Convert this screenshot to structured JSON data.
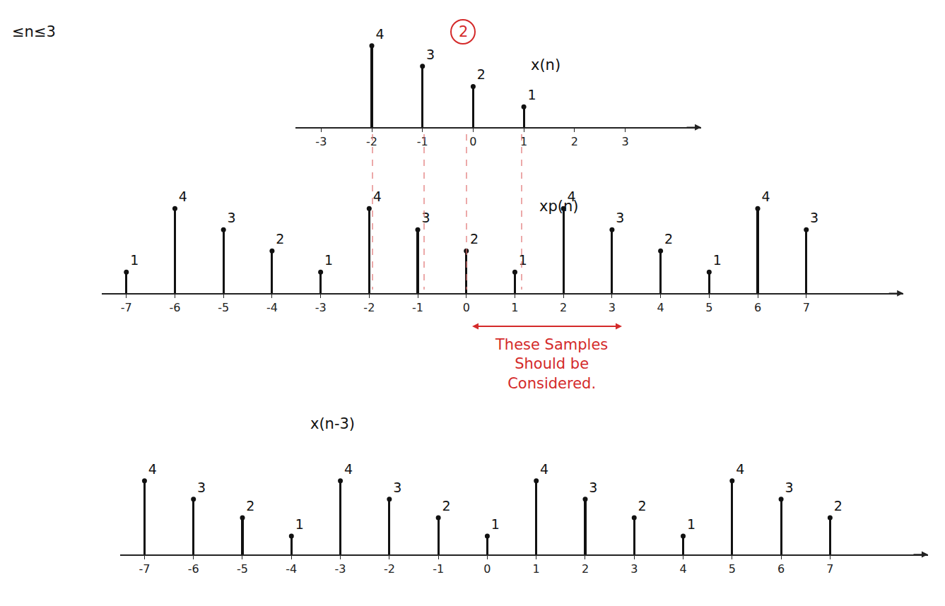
{
  "chart_data": [
    {
      "type": "stem",
      "annotations": [
        {
          "text": "2",
          "color": "#d42a2a"
        },
        {
          "text": "x(n)"
        },
        {
          "text": "≤n≤3"
        }
      ],
      "x": [
        -2,
        -1,
        0,
        1
      ],
      "values": [
        4,
        3,
        2,
        1
      ],
      "xlim": [
        -3.5,
        4.5
      ],
      "xticks": [
        -3,
        -2,
        -1,
        0,
        1,
        2,
        3
      ],
      "ylim": [
        0,
        5
      ],
      "tick_labels": "x",
      "data_labels": true,
      "color": "#111111"
    },
    {
      "type": "stem",
      "annotations": [
        {
          "text": "xp(n)"
        },
        {
          "text": "These Samples Should be Considered.",
          "color": "#d42a2a"
        }
      ],
      "x": [
        -7,
        -6,
        -5,
        -4,
        -3,
        -2,
        -1,
        0,
        1,
        2,
        3,
        4,
        5,
        6,
        7
      ],
      "values": [
        1,
        4,
        3,
        2,
        1,
        4,
        3,
        2,
        1,
        4,
        3,
        2,
        1,
        4,
        3
      ],
      "xlim": [
        -7.5,
        9
      ],
      "xticks": [
        -7,
        -6,
        -5,
        -4,
        -3,
        -2,
        -1,
        0,
        1,
        2,
        3,
        4,
        5,
        6,
        7
      ],
      "ylim": [
        0,
        5
      ],
      "tick_labels": "x",
      "data_labels": true,
      "color": "#111111"
    },
    {
      "type": "stem",
      "annotations": [
        {
          "text": "x(n-3)"
        }
      ],
      "x": [
        -7,
        -6,
        -5,
        -4,
        -3,
        -2,
        -1,
        0,
        1,
        2,
        3,
        4,
        5,
        6,
        7
      ],
      "values": [
        4,
        3,
        2,
        1,
        4,
        3,
        2,
        1,
        4,
        3,
        2,
        1,
        4,
        3,
        2
      ],
      "xlim": [
        -7.5,
        9
      ],
      "xticks": [
        -7,
        -6,
        -5,
        -4,
        -3,
        -2,
        -1,
        0,
        1,
        2,
        3,
        4,
        5,
        6,
        7
      ],
      "ylim": [
        0,
        5
      ],
      "tick_labels": "x",
      "data_labels": true,
      "color": "#111111"
    }
  ]
}
